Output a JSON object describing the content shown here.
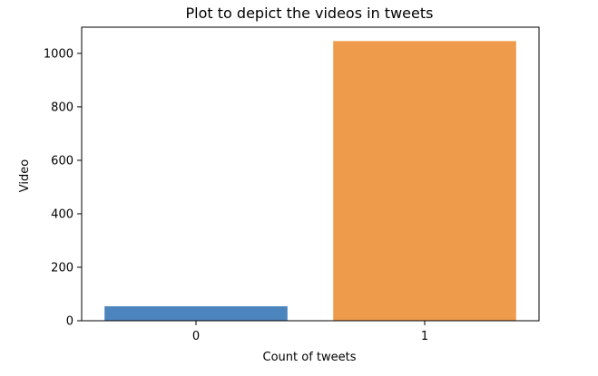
{
  "chart_data": {
    "type": "bar",
    "title": "Plot to depict the videos in tweets",
    "xlabel": "Count of tweets",
    "ylabel": "Video",
    "categories": [
      "0",
      "1"
    ],
    "values": [
      54,
      1046
    ],
    "ylim": [
      0,
      1098
    ],
    "yticks": [
      0,
      200,
      400,
      600,
      800,
      1000
    ],
    "colors": [
      "#4c84be",
      "#ee9c4b"
    ],
    "grid": false,
    "legend": null
  }
}
